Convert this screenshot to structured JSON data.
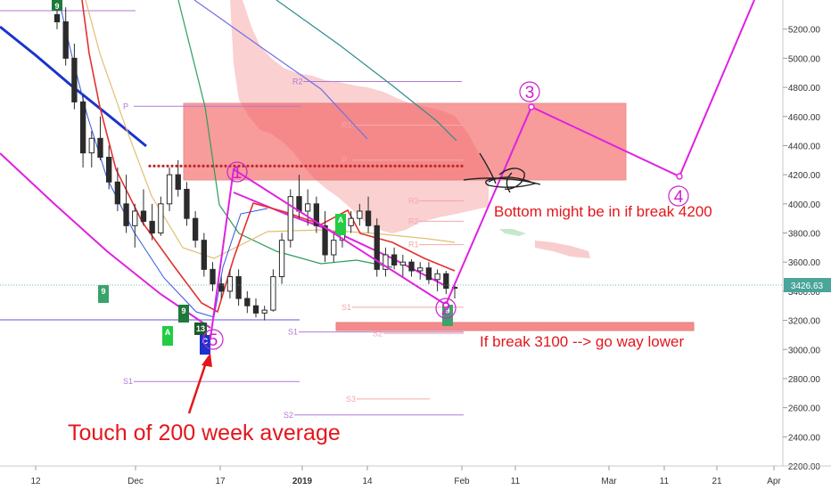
{
  "chart_data": {
    "type": "candlestick",
    "title": "",
    "symbol_price": "3426.63",
    "current_price": 3426.63,
    "y_axis": {
      "min": 2200,
      "max": 5400,
      "side": "right",
      "ticks": [
        "5200.00",
        "5000.00",
        "4800.00",
        "4600.00",
        "4400.00",
        "4200.00",
        "4000.00",
        "3800.00",
        "3600.00",
        "3400.00",
        "3200.00",
        "3000.00",
        "2800.00",
        "2600.00",
        "2400.00",
        "2200.00"
      ]
    },
    "x_axis": {
      "ticks": [
        "12",
        "Dec",
        "17",
        "2019",
        "14",
        "Feb",
        "11",
        "Mar",
        "11",
        "21",
        "Apr"
      ],
      "bold_ticks": [
        "2019"
      ]
    },
    "candles": [
      {
        "o": 5300,
        "h": 5420,
        "l": 5200,
        "c": 5250
      },
      {
        "o": 5250,
        "h": 5350,
        "l": 4950,
        "c": 5000
      },
      {
        "o": 5000,
        "h": 5100,
        "l": 4650,
        "c": 4700
      },
      {
        "o": 4700,
        "h": 4750,
        "l": 4250,
        "c": 4350
      },
      {
        "o": 4350,
        "h": 4500,
        "l": 4250,
        "c": 4450
      },
      {
        "o": 4450,
        "h": 4600,
        "l": 4300,
        "c": 4320
      },
      {
        "o": 4320,
        "h": 4400,
        "l": 4100,
        "c": 4150
      },
      {
        "o": 4150,
        "h": 4250,
        "l": 3950,
        "c": 4000
      },
      {
        "o": 4000,
        "h": 4200,
        "l": 3800,
        "c": 3850
      },
      {
        "o": 3850,
        "h": 4000,
        "l": 3700,
        "c": 3950
      },
      {
        "o": 3950,
        "h": 4100,
        "l": 3850,
        "c": 3880
      },
      {
        "o": 3880,
        "h": 4000,
        "l": 3750,
        "c": 3800
      },
      {
        "o": 3800,
        "h": 4050,
        "l": 3780,
        "c": 4000
      },
      {
        "o": 4000,
        "h": 4250,
        "l": 3950,
        "c": 4200
      },
      {
        "o": 4200,
        "h": 4300,
        "l": 4050,
        "c": 4100
      },
      {
        "o": 4100,
        "h": 4150,
        "l": 3850,
        "c": 3900
      },
      {
        "o": 3900,
        "h": 3950,
        "l": 3700,
        "c": 3750
      },
      {
        "o": 3750,
        "h": 3800,
        "l": 3500,
        "c": 3550
      },
      {
        "o": 3550,
        "h": 3600,
        "l": 3400,
        "c": 3450
      },
      {
        "o": 3450,
        "h": 3500,
        "l": 3350,
        "c": 3400
      },
      {
        "o": 3400,
        "h": 3550,
        "l": 3350,
        "c": 3500
      },
      {
        "o": 3500,
        "h": 3550,
        "l": 3300,
        "c": 3350
      },
      {
        "o": 3350,
        "h": 3400,
        "l": 3250,
        "c": 3300
      },
      {
        "o": 3300,
        "h": 3350,
        "l": 3220,
        "c": 3250
      },
      {
        "o": 3250,
        "h": 3300,
        "l": 3200,
        "c": 3270
      },
      {
        "o": 3270,
        "h": 3550,
        "l": 3260,
        "c": 3500
      },
      {
        "o": 3500,
        "h": 3800,
        "l": 3450,
        "c": 3750
      },
      {
        "o": 3750,
        "h": 4100,
        "l": 3700,
        "c": 4050
      },
      {
        "o": 4050,
        "h": 4200,
        "l": 3900,
        "c": 3950
      },
      {
        "o": 3950,
        "h": 4100,
        "l": 3850,
        "c": 4000
      },
      {
        "o": 4000,
        "h": 4050,
        "l": 3800,
        "c": 3850
      },
      {
        "o": 3850,
        "h": 3950,
        "l": 3600,
        "c": 3650
      },
      {
        "o": 3650,
        "h": 3800,
        "l": 3600,
        "c": 3750
      },
      {
        "o": 3750,
        "h": 3900,
        "l": 3700,
        "c": 3850
      },
      {
        "o": 3850,
        "h": 3950,
        "l": 3800,
        "c": 3900
      },
      {
        "o": 3900,
        "h": 4000,
        "l": 3850,
        "c": 3950
      },
      {
        "o": 3950,
        "h": 4050,
        "l": 3800,
        "c": 3850
      },
      {
        "o": 3850,
        "h": 3900,
        "l": 3500,
        "c": 3550
      },
      {
        "o": 3550,
        "h": 3700,
        "l": 3500,
        "c": 3650
      },
      {
        "o": 3650,
        "h": 3700,
        "l": 3550,
        "c": 3580
      },
      {
        "o": 3580,
        "h": 3650,
        "l": 3500,
        "c": 3600
      },
      {
        "o": 3600,
        "h": 3620,
        "l": 3500,
        "c": 3540
      },
      {
        "o": 3540,
        "h": 3600,
        "l": 3480,
        "c": 3560
      },
      {
        "o": 3560,
        "h": 3600,
        "l": 3450,
        "c": 3480
      },
      {
        "o": 3480,
        "h": 3550,
        "l": 3400,
        "c": 3520
      },
      {
        "o": 3520,
        "h": 3540,
        "l": 3380,
        "c": 3420
      },
      {
        "o": 3420,
        "h": 3450,
        "l": 3350,
        "c": 3426.63
      }
    ],
    "projection": {
      "label_color": "#dd22dd",
      "points": [
        {
          "label": "2",
          "t": 46,
          "price": 3300
        },
        {
          "label": "3",
          "t": 58,
          "price": 4620
        },
        {
          "label": "4",
          "t": 72,
          "price": 4160
        },
        {
          "label": "",
          "t": 80,
          "price": 5420
        }
      ]
    },
    "levels": [
      {
        "label": "P",
        "price": 4670,
        "color": "#b07ad6"
      },
      {
        "label": "R2",
        "price": 4840,
        "color": "#b07ad6"
      },
      {
        "label": "S1",
        "price": 3120,
        "color": "#b07ad6"
      },
      {
        "label": "S1",
        "price": 2780,
        "color": "#b07ad6"
      },
      {
        "label": "S2",
        "price": 2550,
        "color": "#b07ad6"
      },
      {
        "label": "R1",
        "price": 4540,
        "color": "#f4a8a8"
      },
      {
        "label": "P",
        "price": 4300,
        "color": "#f4a8a8"
      },
      {
        "label": "R3",
        "price": 4020,
        "color": "#f4a8a8"
      },
      {
        "label": "R2",
        "price": 3880,
        "color": "#f4a8a8"
      },
      {
        "label": "R1",
        "price": 3720,
        "color": "#f4a8a8"
      },
      {
        "label": "S1",
        "price": 3290,
        "color": "#f4a8a8"
      },
      {
        "label": "S2",
        "price": 3110,
        "color": "#f4a8a8"
      },
      {
        "label": "S3",
        "price": 2660,
        "color": "#f4a8a8"
      }
    ],
    "resistance_price": 4260,
    "annotations": {
      "bottom_text": "Bottom might be in if break 4200",
      "break_text": "If break 3100 --> go way lower",
      "touch_text": "Touch of 200 week average"
    },
    "wave_labels": [
      "1",
      "2",
      "3",
      "4",
      "5"
    ],
    "td_counts": [
      "9",
      "9",
      "9",
      "9",
      "13",
      "A",
      "A",
      "C"
    ],
    "colors": {
      "bull": "#26a69a",
      "bear": "#ef5350",
      "candle_body": "#2b2b2b",
      "cloud": "#f8b9b9",
      "zone": "#f36c6c",
      "projection": "#e020e0",
      "red_text": "#e3161c",
      "price_label_bg": "#4aa59a"
    }
  }
}
